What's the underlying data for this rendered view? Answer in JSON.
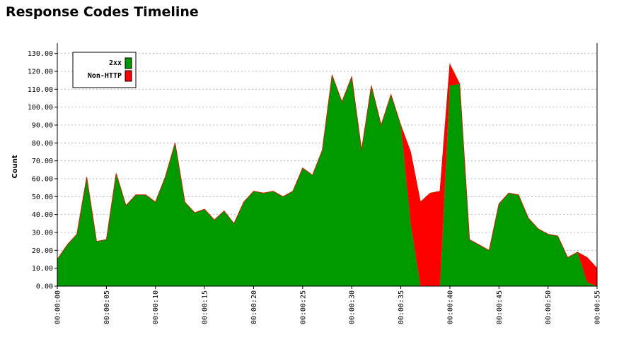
{
  "title": "Response Codes Timeline",
  "chart_data": {
    "type": "area",
    "ylabel": "Count",
    "xlabel": "",
    "ylim": [
      0,
      135
    ],
    "yticks": [
      "0.00",
      "10.00",
      "20.00",
      "30.00",
      "40.00",
      "50.00",
      "60.00",
      "70.00",
      "80.00",
      "90.00",
      "100.00",
      "110.00",
      "120.00",
      "130.00"
    ],
    "xticks": [
      "00:00:00",
      "00:00:05",
      "00:00:10",
      "00:00:15",
      "00:00:20",
      "00:00:25",
      "00:00:30",
      "00:00:35",
      "00:00:40",
      "00:00:45",
      "00:00:50",
      "00:00:55"
    ],
    "xlim_seconds": [
      0,
      55
    ],
    "grid": true,
    "legend_position": "top-left",
    "stacked": true,
    "series": [
      {
        "name": "2xx",
        "color": "#009900",
        "values": [
          15,
          23,
          29,
          61,
          25,
          26,
          63,
          45,
          51,
          51,
          47,
          61,
          80,
          47,
          41,
          43,
          37,
          42,
          35,
          47,
          53,
          52,
          53,
          50,
          53,
          66,
          62,
          76,
          118,
          103,
          117,
          76,
          112,
          90,
          107,
          90,
          35,
          0,
          0,
          0,
          112,
          113,
          26,
          23,
          20,
          46,
          52,
          51,
          38,
          32,
          29,
          28,
          16,
          19,
          2,
          0
        ]
      },
      {
        "name": "Non-HTTP",
        "color": "#ff0000",
        "values": [
          0,
          0,
          0,
          0,
          0,
          0,
          0,
          0,
          0,
          0,
          0,
          0,
          0,
          0,
          0,
          0,
          0,
          0,
          0,
          0,
          0,
          0,
          0,
          0,
          0,
          0,
          0,
          0,
          0,
          0,
          0,
          0,
          0,
          0,
          0,
          0,
          40,
          47,
          52,
          53,
          12,
          0,
          0,
          0,
          0,
          0,
          0,
          0,
          0,
          0,
          0,
          0,
          0,
          0,
          14,
          10
        ]
      }
    ]
  }
}
